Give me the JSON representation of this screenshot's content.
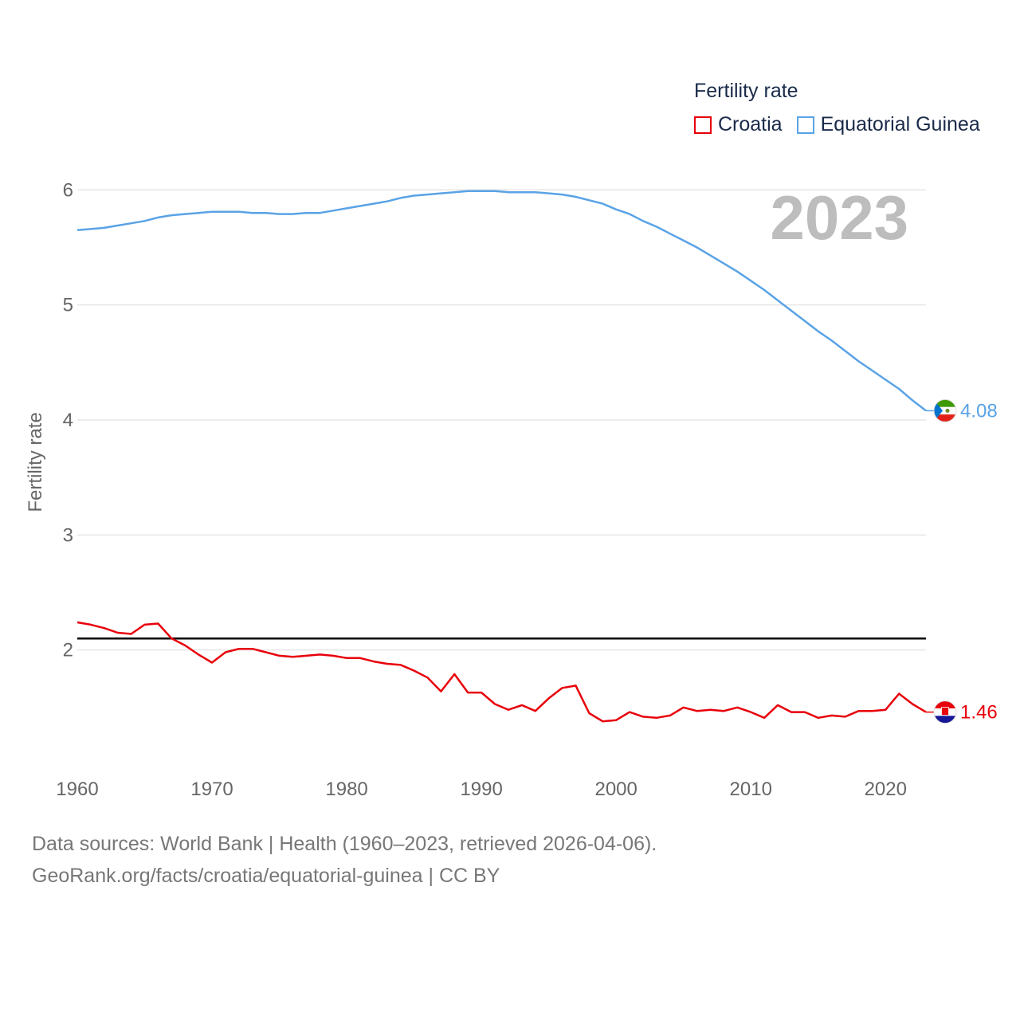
{
  "legend": {
    "title": "Fertility rate",
    "items": [
      {
        "label": "Croatia",
        "color": "#e8000b"
      },
      {
        "label": "Equatorial Guinea",
        "color": "#5aa3e6"
      }
    ]
  },
  "footer": {
    "line1": "Data sources: World Bank | Health (1960–2023, retrieved 2026-04-06).",
    "line2": "GeoRank.org/facts/croatia/equatorial-guinea | CC BY"
  },
  "chart_data": {
    "type": "line",
    "title": "Fertility rate",
    "year_label": "2023",
    "xlabel": "",
    "ylabel": "Fertility rate",
    "xlim": [
      1960,
      2023
    ],
    "ylim": [
      1.0,
      6.3
    ],
    "x_ticks": [
      1960,
      1970,
      1980,
      1990,
      2000,
      2010,
      2020
    ],
    "y_ticks": [
      2,
      3,
      4,
      5,
      6
    ],
    "reference_line": {
      "value": 2.1,
      "color": "#000000"
    },
    "series": [
      {
        "name": "Equatorial Guinea",
        "color": "#5aa3e6",
        "end_label": "4.08",
        "x": [
          1960,
          1961,
          1962,
          1963,
          1964,
          1965,
          1966,
          1967,
          1968,
          1969,
          1970,
          1971,
          1972,
          1973,
          1974,
          1975,
          1976,
          1977,
          1978,
          1979,
          1980,
          1981,
          1982,
          1983,
          1984,
          1985,
          1986,
          1987,
          1988,
          1989,
          1990,
          1991,
          1992,
          1993,
          1994,
          1995,
          1996,
          1997,
          1998,
          1999,
          2000,
          2001,
          2002,
          2003,
          2004,
          2005,
          2006,
          2007,
          2008,
          2009,
          2010,
          2011,
          2012,
          2013,
          2014,
          2015,
          2016,
          2017,
          2018,
          2019,
          2020,
          2021,
          2022,
          2023
        ],
        "values": [
          5.65,
          5.66,
          5.67,
          5.69,
          5.71,
          5.73,
          5.76,
          5.78,
          5.79,
          5.8,
          5.81,
          5.81,
          5.81,
          5.8,
          5.8,
          5.79,
          5.79,
          5.8,
          5.8,
          5.82,
          5.84,
          5.86,
          5.88,
          5.9,
          5.93,
          5.95,
          5.96,
          5.97,
          5.98,
          5.99,
          5.99,
          5.99,
          5.98,
          5.98,
          5.98,
          5.97,
          5.96,
          5.94,
          5.91,
          5.88,
          5.83,
          5.79,
          5.73,
          5.68,
          5.62,
          5.56,
          5.5,
          5.43,
          5.36,
          5.29,
          5.21,
          5.13,
          5.04,
          4.95,
          4.86,
          4.77,
          4.69,
          4.6,
          4.51,
          4.43,
          4.35,
          4.27,
          4.17,
          4.08
        ]
      },
      {
        "name": "Croatia",
        "color": "#e8000b",
        "end_label": "1.46",
        "x": [
          1960,
          1961,
          1962,
          1963,
          1964,
          1965,
          1966,
          1967,
          1968,
          1969,
          1970,
          1971,
          1972,
          1973,
          1974,
          1975,
          1976,
          1977,
          1978,
          1979,
          1980,
          1981,
          1982,
          1983,
          1984,
          1985,
          1986,
          1987,
          1988,
          1989,
          1990,
          1991,
          1992,
          1993,
          1994,
          1995,
          1996,
          1997,
          1998,
          1999,
          2000,
          2001,
          2002,
          2003,
          2004,
          2005,
          2006,
          2007,
          2008,
          2009,
          2010,
          2011,
          2012,
          2013,
          2014,
          2015,
          2016,
          2017,
          2018,
          2019,
          2020,
          2021,
          2022,
          2023
        ],
        "values": [
          2.24,
          2.22,
          2.19,
          2.15,
          2.14,
          2.22,
          2.23,
          2.1,
          2.04,
          1.96,
          1.89,
          1.98,
          2.01,
          2.01,
          1.98,
          1.95,
          1.94,
          1.95,
          1.96,
          1.95,
          1.93,
          1.93,
          1.9,
          1.88,
          1.87,
          1.82,
          1.76,
          1.64,
          1.79,
          1.63,
          1.63,
          1.53,
          1.48,
          1.52,
          1.47,
          1.58,
          1.67,
          1.69,
          1.45,
          1.38,
          1.39,
          1.46,
          1.42,
          1.41,
          1.43,
          1.5,
          1.47,
          1.48,
          1.47,
          1.5,
          1.46,
          1.41,
          1.52,
          1.46,
          1.46,
          1.41,
          1.43,
          1.42,
          1.47,
          1.47,
          1.48,
          1.62,
          1.53,
          1.46
        ]
      }
    ]
  }
}
